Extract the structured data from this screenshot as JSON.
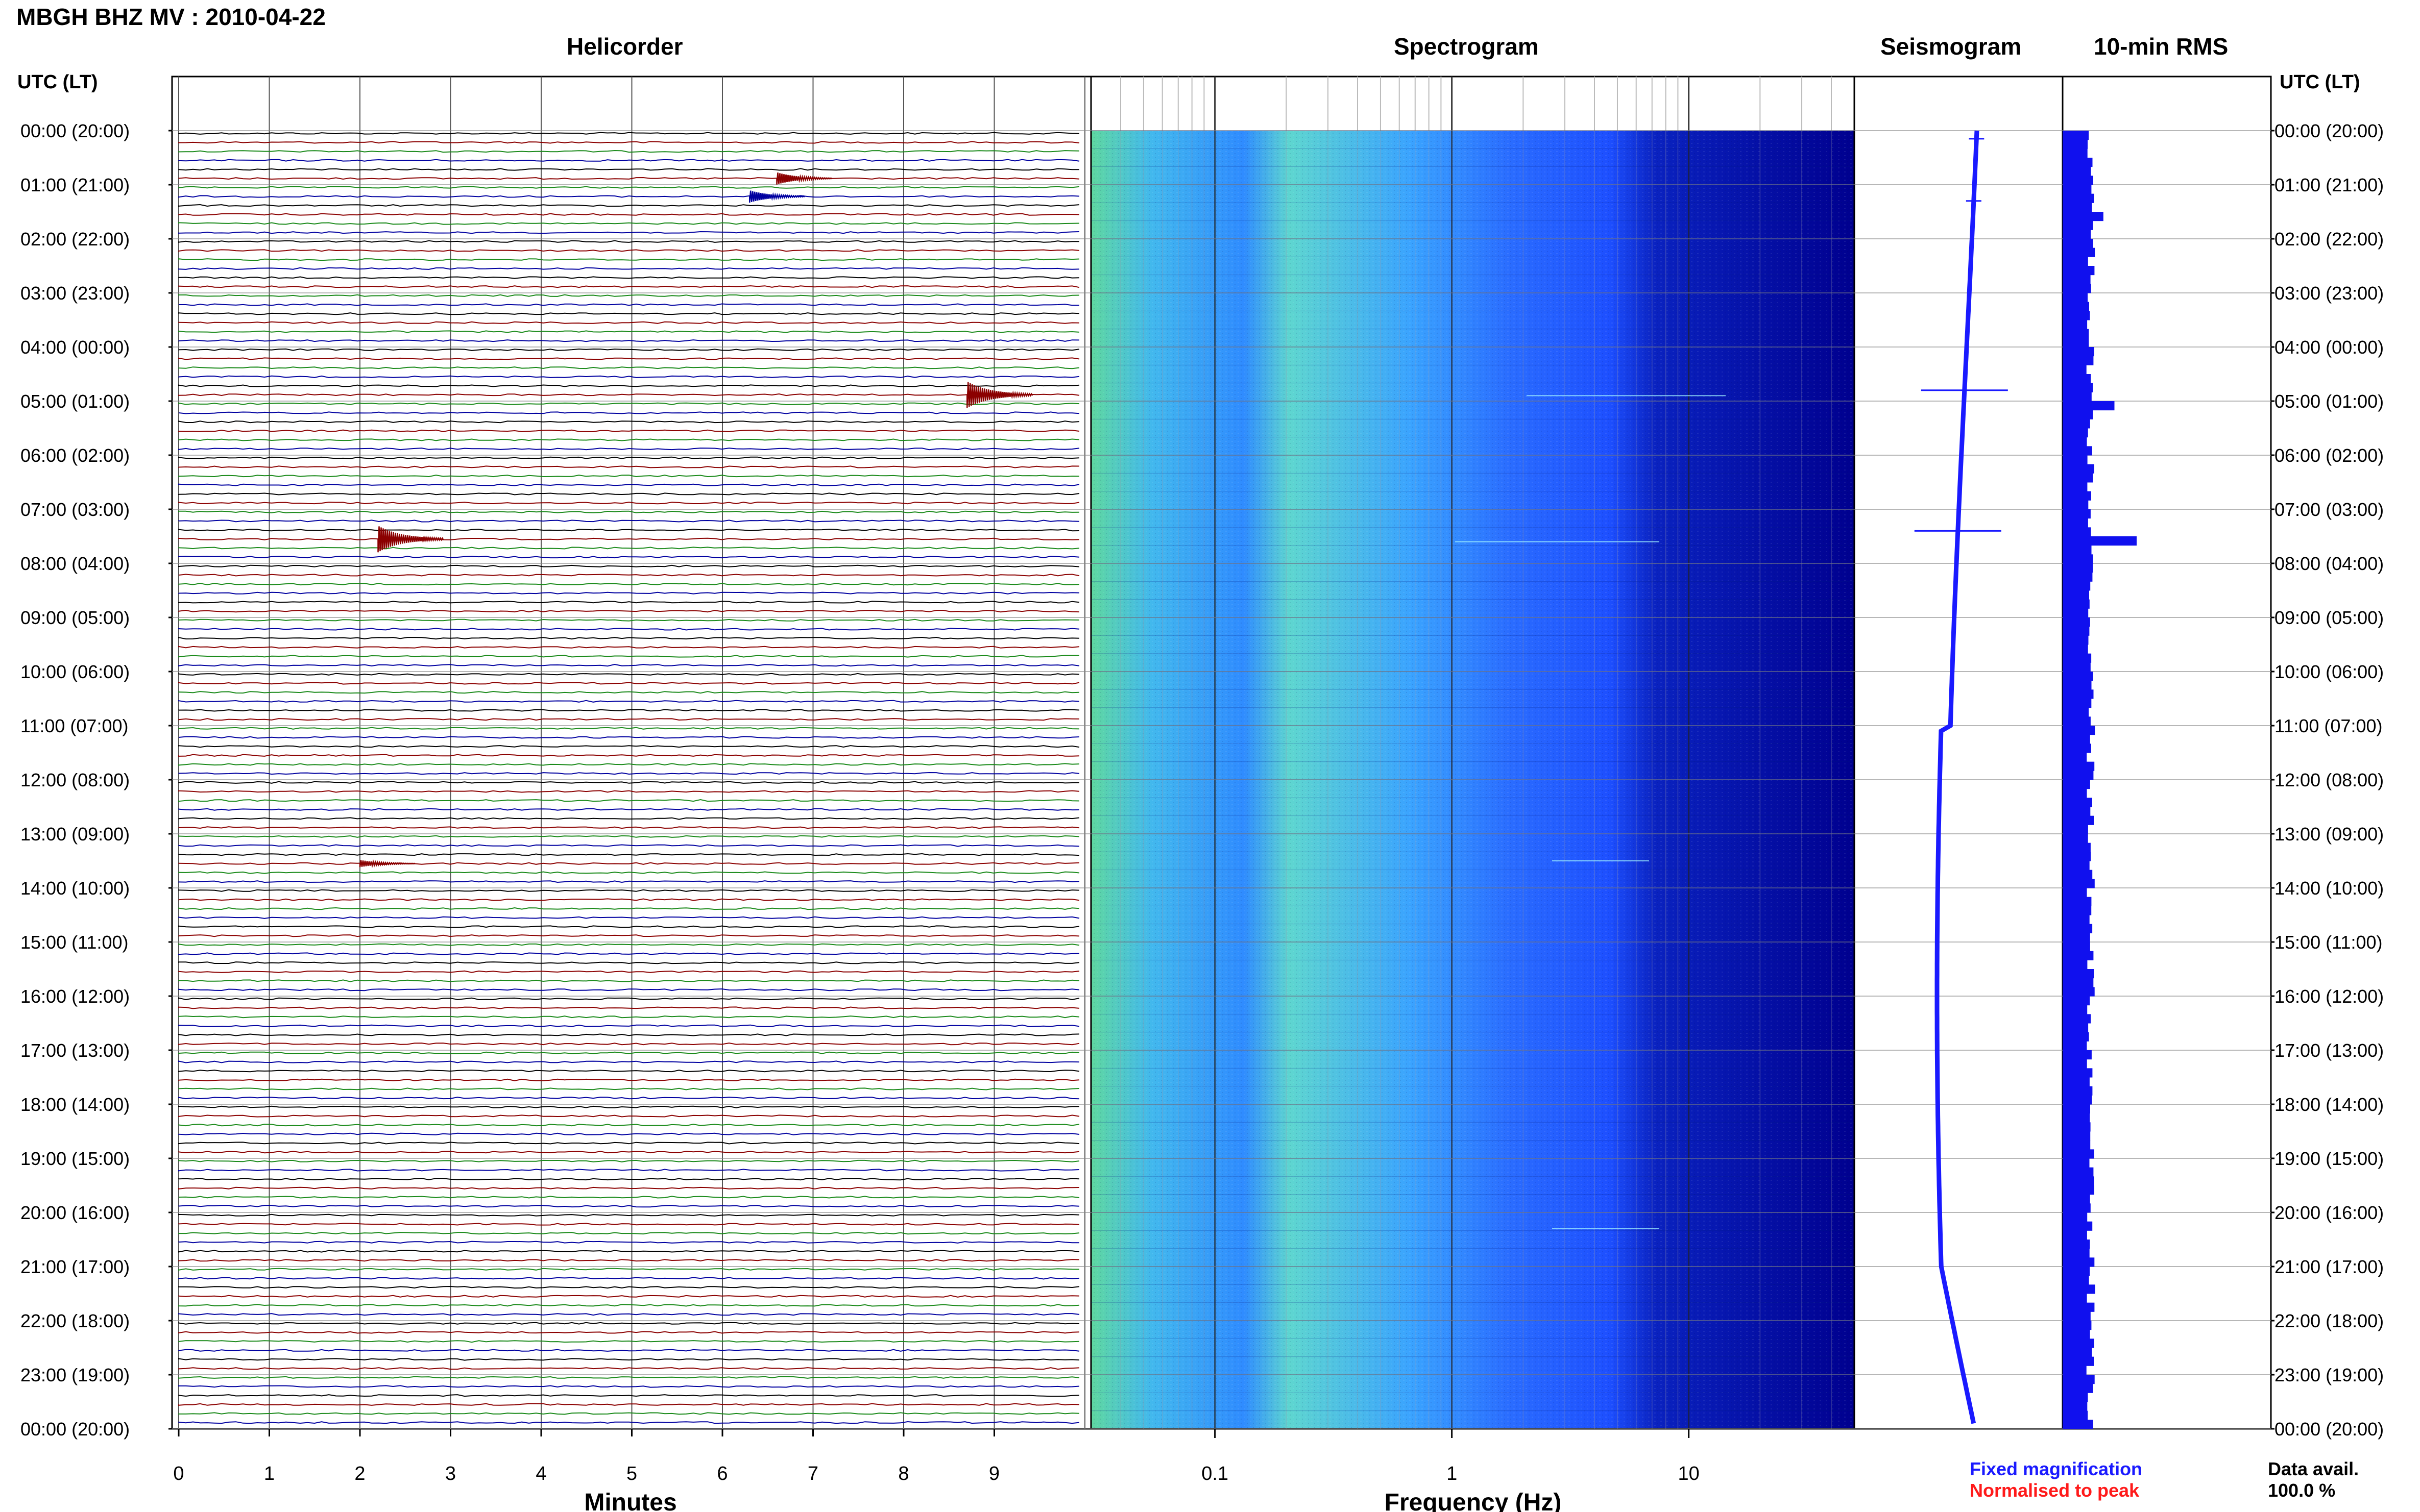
{
  "header": {
    "title": "MBGH BHZ MV : 2010-04-22"
  },
  "panels": {
    "helicorder": "Helicorder",
    "spectrogram": "Spectrogram",
    "seismogram": "Seismogram",
    "rms": "10-min RMS"
  },
  "axes": {
    "left_header": "UTC (LT)",
    "right_header": "UTC (LT)",
    "time_labels": [
      "00:00 (20:00)",
      "01:00 (21:00)",
      "02:00 (22:00)",
      "03:00 (23:00)",
      "04:00 (00:00)",
      "05:00 (01:00)",
      "06:00 (02:00)",
      "07:00 (03:00)",
      "08:00 (04:00)",
      "09:00 (05:00)",
      "10:00 (06:00)",
      "11:00 (07:00)",
      "12:00 (08:00)",
      "13:00 (09:00)",
      "14:00 (10:00)",
      "15:00 (11:00)",
      "16:00 (12:00)",
      "17:00 (13:00)",
      "18:00 (14:00)",
      "19:00 (15:00)",
      "20:00 (16:00)",
      "21:00 (17:00)",
      "22:00 (18:00)",
      "23:00 (19:00)",
      "00:00 (20:00)"
    ],
    "minutes_label": "Minutes",
    "minute_ticks": [
      "0",
      "1",
      "2",
      "3",
      "4",
      "5",
      "6",
      "7",
      "8",
      "9"
    ],
    "frequency_label": "Frequency (Hz)",
    "frequency_ticks": [
      "0.1",
      "1",
      "10"
    ]
  },
  "legend": {
    "fixed": "Fixed magnification",
    "normalised": "Normalised to peak",
    "data_avail_label": "Data avail.",
    "data_avail_value": "100.0 %"
  },
  "colors": {
    "trace_cycle": [
      "#000000",
      "#8b0000",
      "#1a8a1a",
      "#0000a0"
    ],
    "seismogram": "#1a1aff",
    "rms": "#1010ee",
    "legend_blue": "#1a1aff",
    "legend_red": "#ff1a1a"
  },
  "chart_data": [
    {
      "type": "line",
      "name": "helicorder",
      "x_unit": "minutes",
      "xlim": [
        0,
        10
      ],
      "rows_per_hour": 6,
      "total_rows": 144,
      "events": [
        {
          "time": "00:50",
          "minute": 6.6,
          "amplitude": "moderate"
        },
        {
          "time": "01:10",
          "minute": 6.3,
          "amplitude": "moderate"
        },
        {
          "time": "04:50",
          "minute": 8.7,
          "amplitude": "large"
        },
        {
          "time": "07:30",
          "minute": 2.2,
          "amplitude": "large"
        },
        {
          "time": "13:30",
          "minute": 2.0,
          "amplitude": "small"
        }
      ]
    },
    {
      "type": "heatmap",
      "name": "spectrogram",
      "x_scale": "log",
      "xlim": [
        0.03,
        50
      ],
      "ylim": [
        "00:00",
        "24:00"
      ]
    },
    {
      "type": "line",
      "name": "seismogram",
      "ylim": [
        "00:00",
        "24:00"
      ]
    },
    {
      "type": "bar",
      "name": "10-min RMS",
      "rows_per_hour": 6,
      "peaks": [
        {
          "time": "01:30",
          "relative": 0.55
        },
        {
          "time": "05:00",
          "relative": 0.7
        },
        {
          "time": "07:30",
          "relative": 1.0
        }
      ]
    }
  ]
}
